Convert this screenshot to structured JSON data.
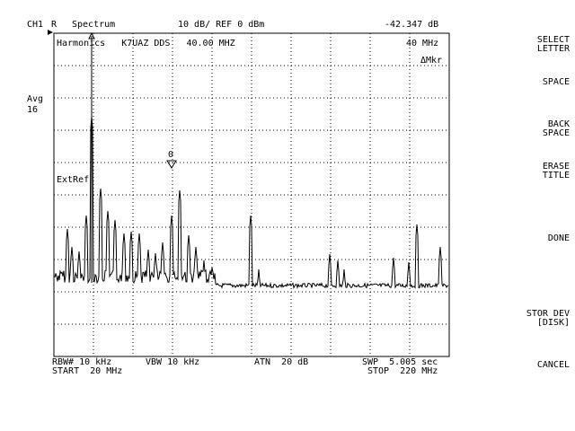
{
  "header": {
    "channel": "CH1",
    "input": "R",
    "mode": "Spectrum",
    "scale_ref": "10 dB/ REF 0 dBm",
    "marker_readout": "-42.347 dB"
  },
  "plot": {
    "title": "Harmonics   K7UAZ DDS   40.00 MHZ",
    "marker_freq": "40 MHz",
    "marker_mode": "ΔMkr",
    "ext_ref": "ExtRef",
    "avg_label": "Avg",
    "avg_count": "16",
    "marker_zero": "0"
  },
  "footer": {
    "rbw": "RBW# 10 kHz",
    "vbw": "VBW 10 kHz",
    "atn": "ATN  20 dB",
    "swp": "SWP  5.005 sec",
    "start": "START  20 MHz",
    "stop": "STOP  220 MHz"
  },
  "softkeys": [
    {
      "line1": "SELECT",
      "line2": "LETTER"
    },
    {
      "line1": "SPACE",
      "line2": ""
    },
    {
      "line1": "BACK",
      "line2": "SPACE"
    },
    {
      "line1": "ERASE",
      "line2": "TITLE"
    },
    {
      "line1": "DONE",
      "line2": ""
    },
    {
      "line1": "STOR DEV",
      "line2": "[DISK]"
    },
    {
      "line1": "CANCEL",
      "line2": ""
    }
  ]
}
